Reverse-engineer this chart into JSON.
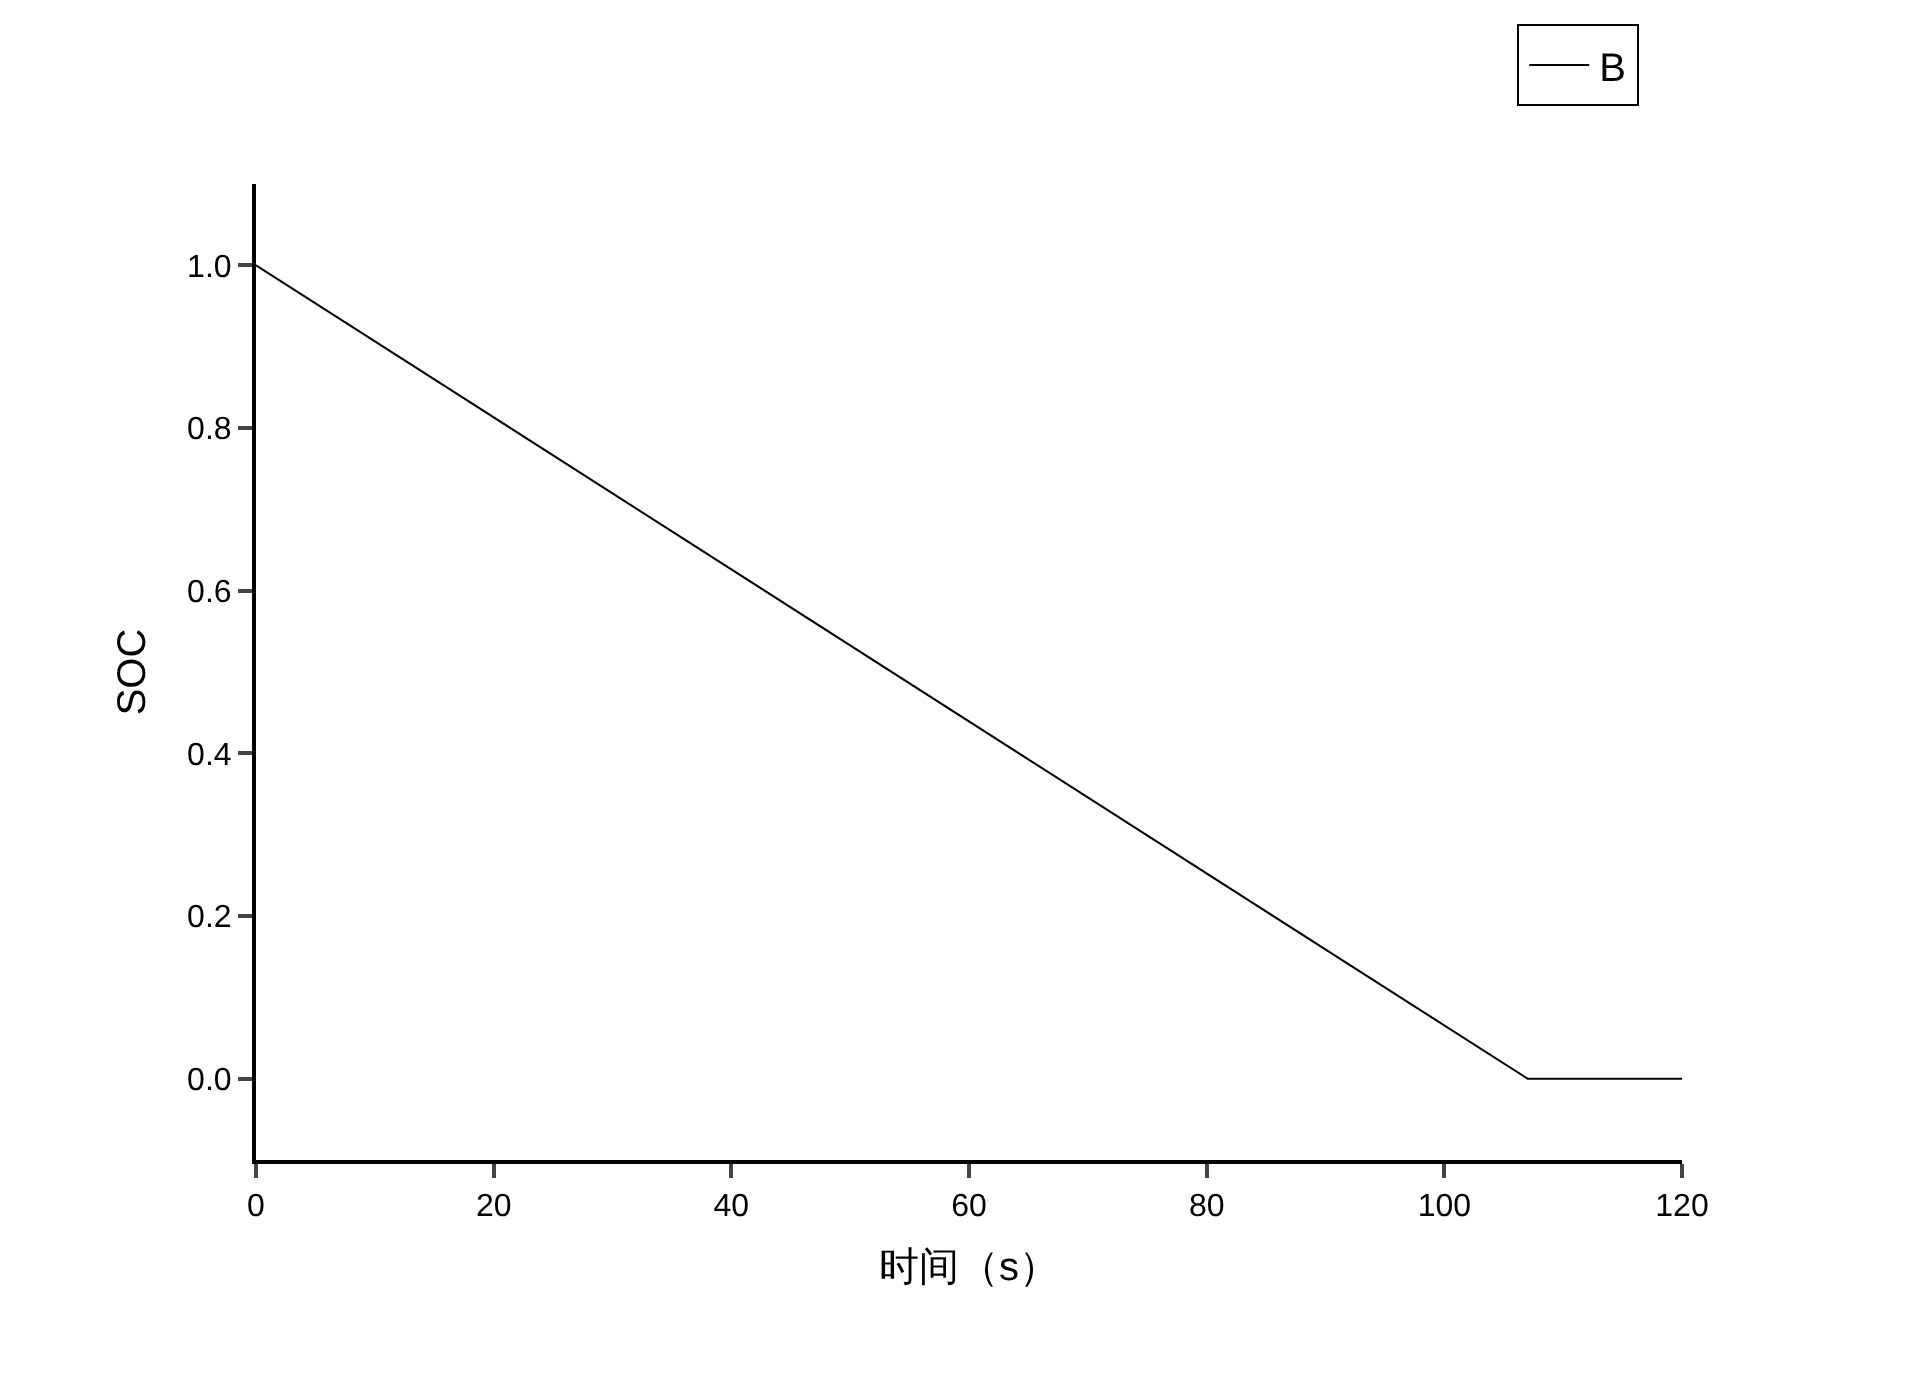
{
  "chart_data": {
    "type": "line",
    "xlabel": "时间（s）",
    "ylabel": "SOC",
    "x": [
      0,
      107,
      120
    ],
    "series": [
      {
        "name": "B",
        "color": "#000000",
        "values": [
          1.0,
          0.0,
          0.0
        ]
      }
    ],
    "xlim": [
      0,
      120
    ],
    "xticks": [
      0,
      20,
      40,
      60,
      80,
      100,
      120
    ],
    "ylim": [
      -0.1,
      1.1
    ],
    "yticks": [
      {
        "value": 0,
        "label": "0.0"
      },
      {
        "value": 0.2,
        "label": "0.2"
      },
      {
        "value": 0.4,
        "label": "0.4"
      },
      {
        "value": 0.6,
        "label": "0.6"
      },
      {
        "value": 0.8,
        "label": "0.8"
      },
      {
        "value": 1.0,
        "label": "1.0"
      }
    ],
    "legend": "top right",
    "marker": "none",
    "line_style": "solid"
  }
}
